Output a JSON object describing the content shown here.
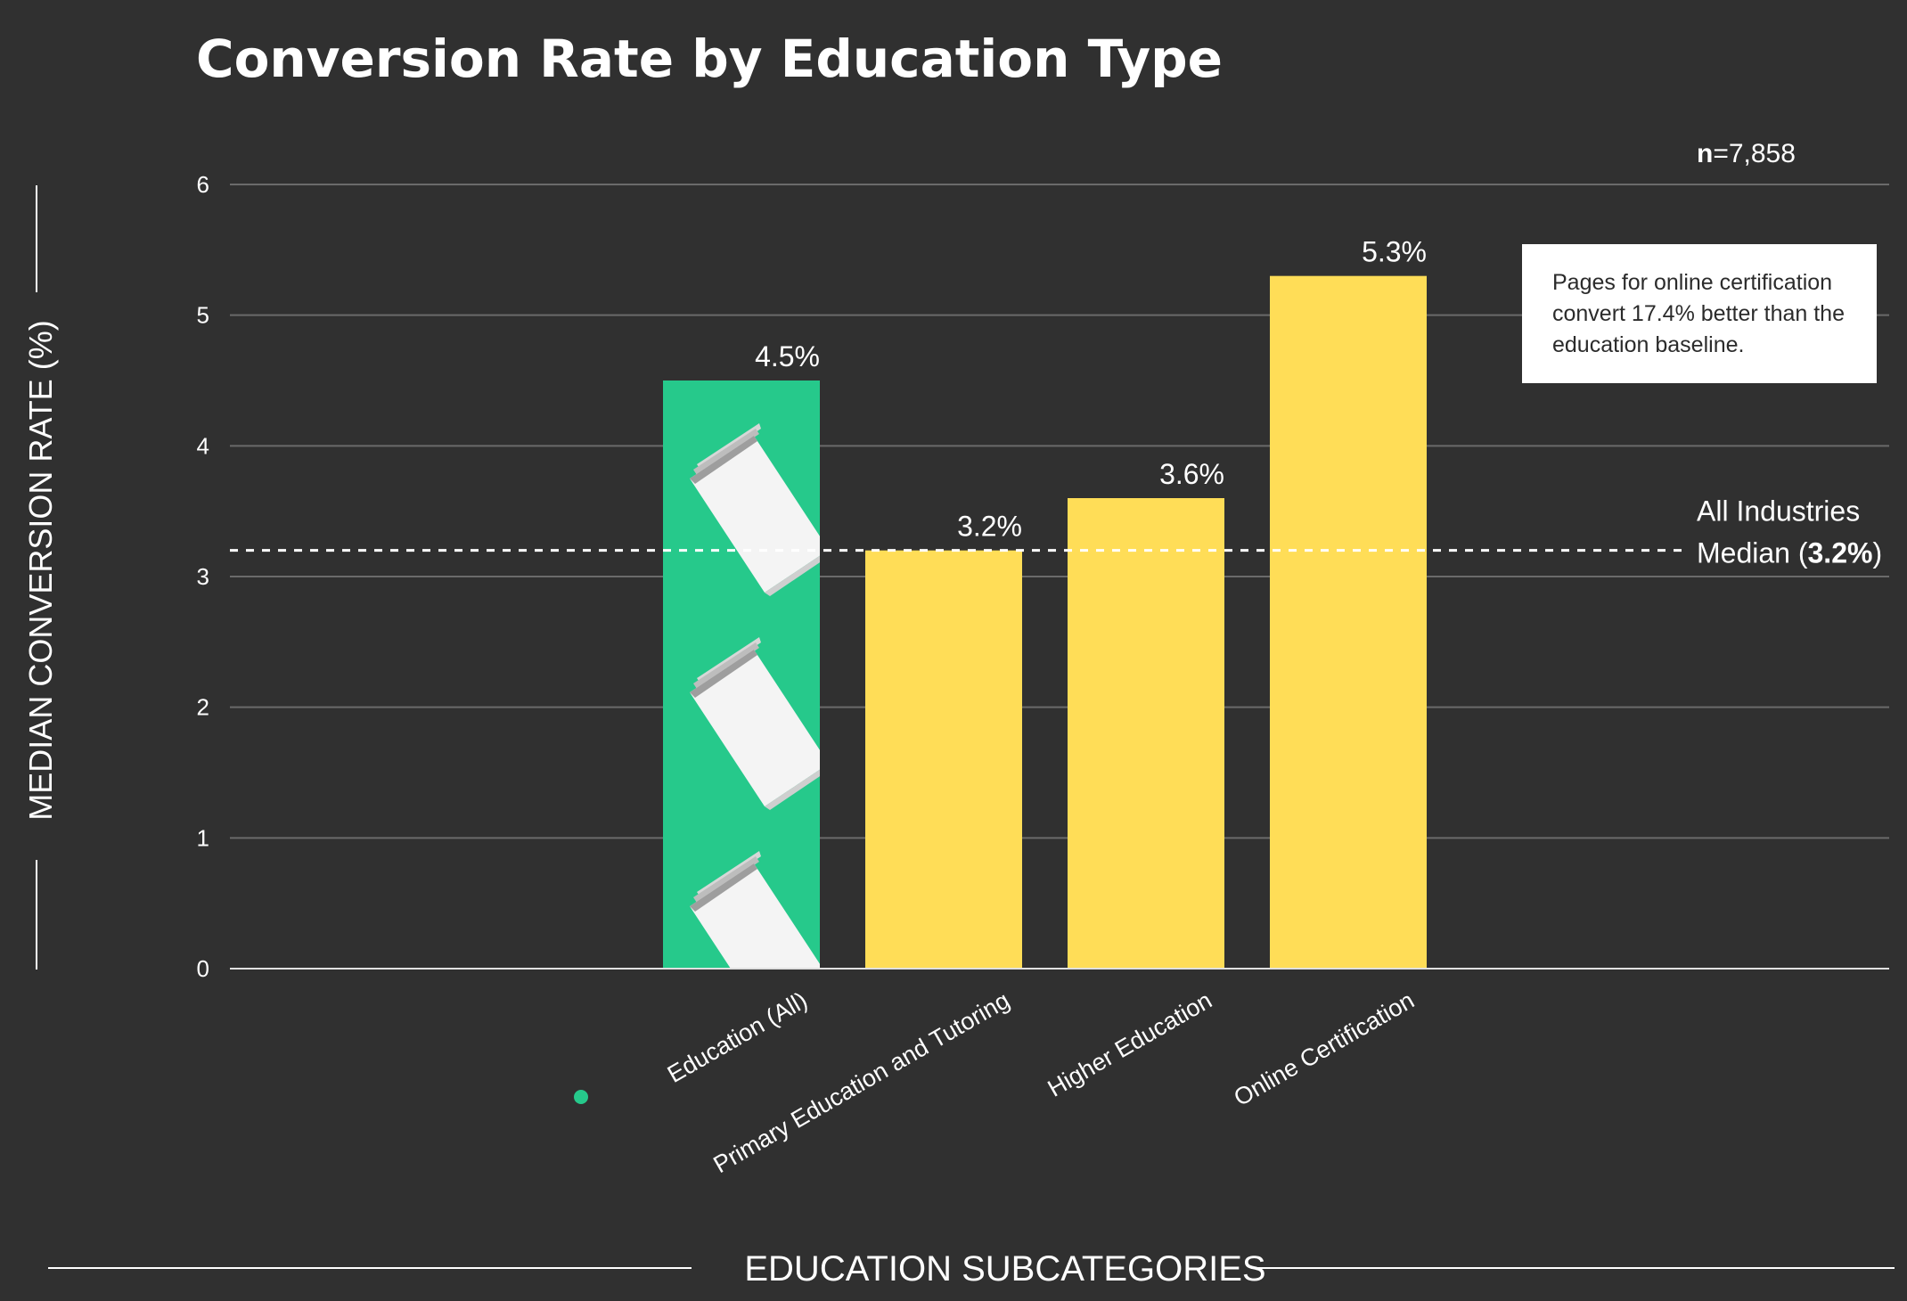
{
  "chart_data": {
    "type": "bar",
    "title": "Conversion Rate by Education Type",
    "xlabel": "EDUCATION SUBCATEGORIES",
    "ylabel": "MEDIAN CONVERSION RATE (%)",
    "ylim": [
      0,
      6
    ],
    "yticks": [
      "0",
      "1",
      "2",
      "3",
      "4",
      "5",
      "6"
    ],
    "grid": true,
    "categories": [
      "Education (All)",
      "Primary Education and Tutoring",
      "Higher Education",
      "Online Certification"
    ],
    "values": [
      4.5,
      3.2,
      3.6,
      5.3
    ],
    "value_labels": [
      "4.5%",
      "3.2%",
      "3.6%",
      "5.3%"
    ],
    "highlight_index": 0,
    "reference_line": {
      "value": 3.2,
      "label_line1": "All Industries",
      "label_prefix": "Median (",
      "label_value": "3.2%",
      "label_suffix": ")"
    },
    "sample_size": {
      "bold": "n",
      "value": "=7,858"
    },
    "annotation": "Pages for online certification convert 17.4% better than the education baseline."
  },
  "colors": {
    "background": "#303030",
    "highlight_bar": "#26c98b",
    "bar": "#ffdd57",
    "grid": "#6a6a6a",
    "text": "#ffffff"
  },
  "icons": [
    "book-icon"
  ]
}
